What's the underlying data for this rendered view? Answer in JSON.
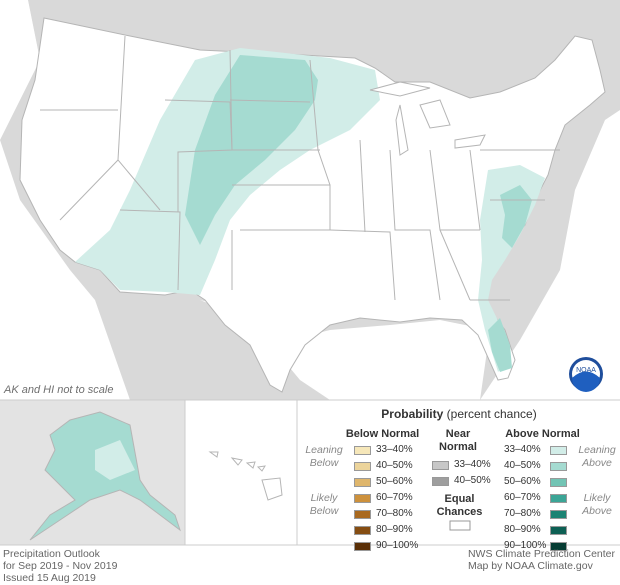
{
  "map_note": "AK and HI not to scale",
  "legend": {
    "title_bold": "Probability",
    "title_rest": " (percent chance)",
    "below_head": "Below Normal",
    "near_head_1": "Near",
    "near_head_2": "Normal",
    "above_head": "Above Normal",
    "leaning_below_1": "Leaning",
    "leaning_below_2": "Below",
    "likely_below_1": "Likely",
    "likely_below_2": "Below",
    "leaning_above_1": "Leaning",
    "leaning_above_2": "Above",
    "likely_above_1": "Likely",
    "likely_above_2": "Above",
    "equal_1": "Equal",
    "equal_2": "Chances",
    "below": [
      {
        "label": "33–40%",
        "color": "#f6e7b9"
      },
      {
        "label": "40–50%",
        "color": "#ecd49b"
      },
      {
        "label": "50–60%",
        "color": "#dfb66c"
      },
      {
        "label": "60–70%",
        "color": "#cd913c"
      },
      {
        "label": "70–80%",
        "color": "#a9691f"
      },
      {
        "label": "80–90%",
        "color": "#854d12"
      },
      {
        "label": "90–100%",
        "color": "#5a2f07"
      }
    ],
    "near": [
      {
        "label": "33–40%",
        "color": "#c7c7c7"
      },
      {
        "label": "40–50%",
        "color": "#9e9e9e"
      }
    ],
    "above": [
      {
        "label": "33–40%",
        "color": "#d2ede8"
      },
      {
        "label": "40–50%",
        "color": "#a5dbd1"
      },
      {
        "label": "50–60%",
        "color": "#72c4b4"
      },
      {
        "label": "60–70%",
        "color": "#3ba596"
      },
      {
        "label": "70–80%",
        "color": "#1c8373"
      },
      {
        "label": "80–90%",
        "color": "#0d6054"
      },
      {
        "label": "90–100%",
        "color": "#063c33"
      }
    ],
    "equal_color": "#ffffff"
  },
  "footer": {
    "left_1": "Precipitation Outlook",
    "left_2": "for Sep 2019 - Nov 2019",
    "left_3": "Issued 15 Aug 2019",
    "right_1": "NWS Climate Prediction Center",
    "right_2": "Map by NOAA Climate.gov"
  },
  "logo_text": "NOAA",
  "colors": {
    "land": "#ffffff",
    "background_land": "#d9d9d9",
    "water": "#ffffff",
    "state_line": "#b5b5b5",
    "lean_above": "#d2ede8",
    "above_40_50": "#a5dbd1"
  },
  "map_data": {
    "region": "Contiguous United States, Alaska, Hawaii",
    "above_normal_areas": [
      {
        "category": "33–40%",
        "area": "Southwest, Rockies, Northern Plains, Upper Midwest"
      },
      {
        "category": "40–50%",
        "area": "Central Rockies and Northern Plains"
      },
      {
        "category": "33–40%",
        "area": "Mid-Atlantic, Carolinas, Florida"
      },
      {
        "category": "40–50%",
        "area": "Virginia and North Carolina coast"
      },
      {
        "category": "40–50%",
        "area": "Florida peninsula"
      },
      {
        "category": "33–40%",
        "area": "Alaska"
      }
    ]
  }
}
